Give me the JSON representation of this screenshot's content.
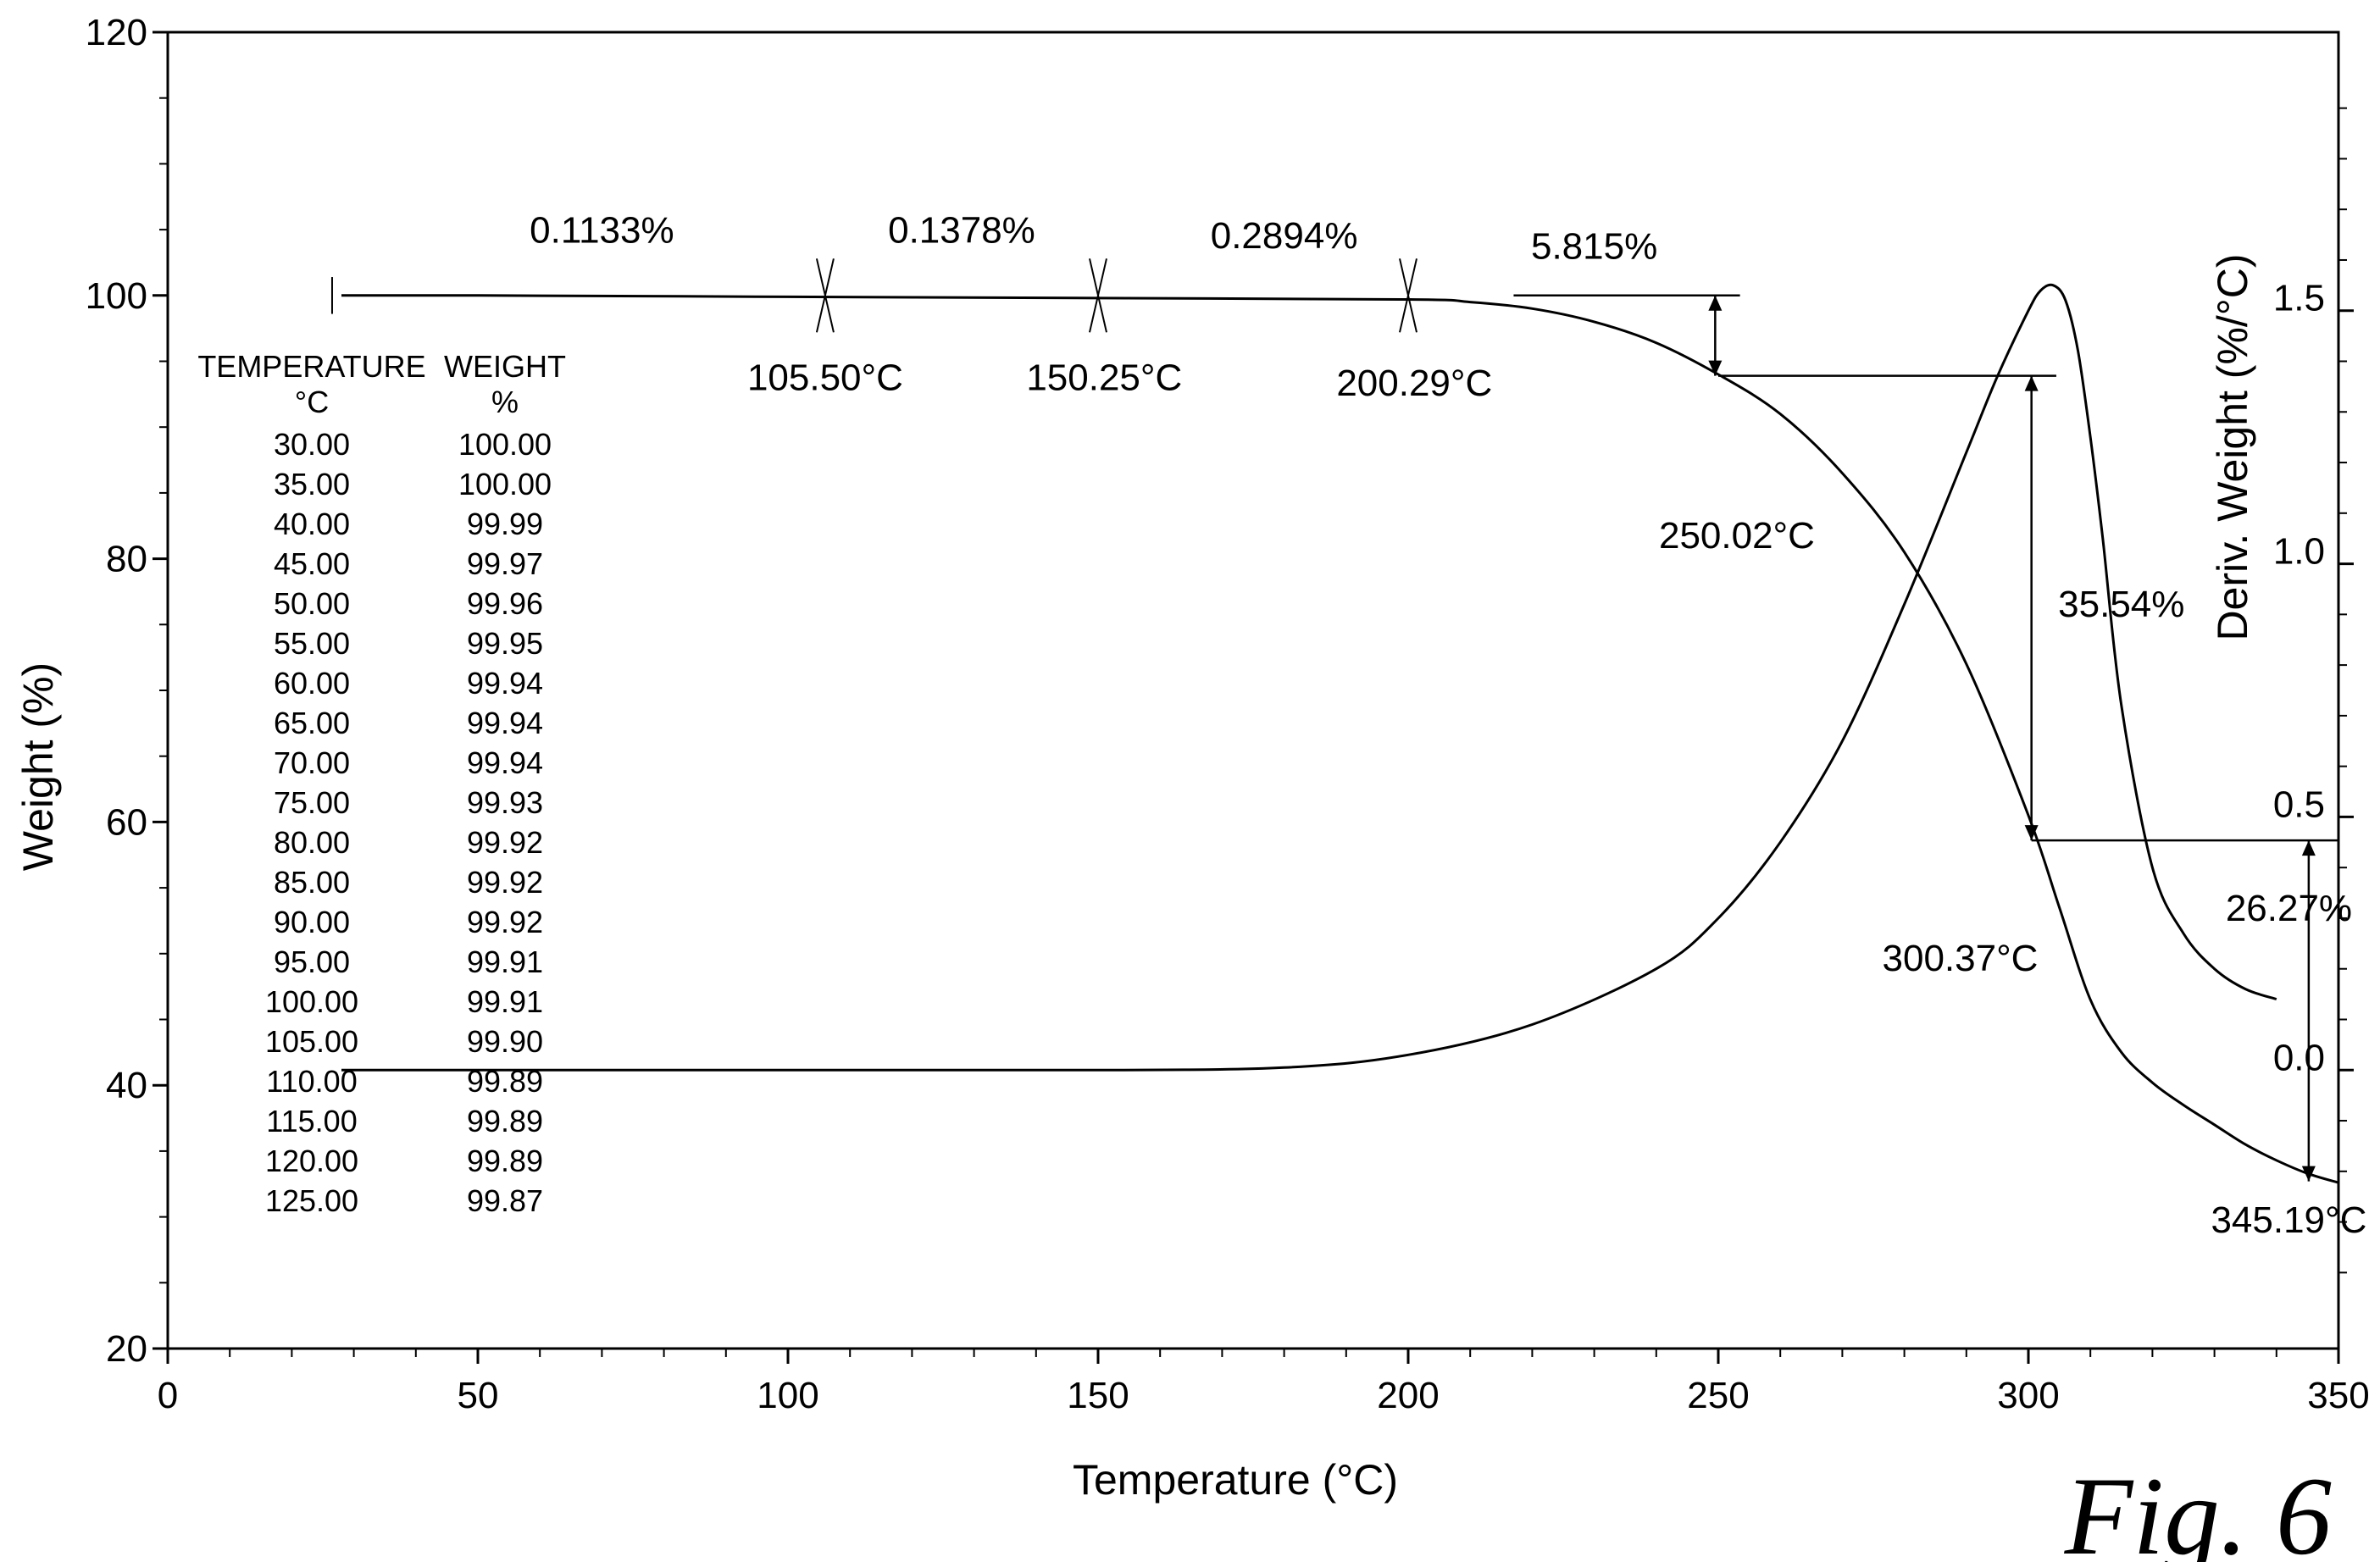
{
  "chart_data": {
    "type": "line",
    "xlabel": "Temperature (°C)",
    "ylabel": "Weight (%)",
    "y2label": "Deriv. Weight (%/°C)",
    "xlim": [
      0,
      350
    ],
    "ylim": [
      20,
      120
    ],
    "y2lim": [
      -0.55,
      2.05
    ],
    "x_ticks": [
      "0",
      "50",
      "100",
      "150",
      "200",
      "250",
      "300",
      "350"
    ],
    "y_ticks": [
      "20",
      "40",
      "60",
      "80",
      "100",
      "120"
    ],
    "y2_ticks": [
      "0.0",
      "0.5",
      "1.0",
      "1.5"
    ],
    "grid": false,
    "series": [
      {
        "axis": "left",
        "x": [
          28,
          50,
          100,
          150,
          200,
          210,
          220,
          230,
          240,
          250,
          260,
          270,
          280,
          290,
          300,
          305,
          310,
          315,
          320,
          325,
          330,
          335,
          340,
          345,
          350
        ],
        "y": [
          100,
          100,
          99.9,
          99.8,
          99.7,
          99.5,
          99.0,
          98.0,
          96.4,
          94.0,
          91.0,
          86.5,
          80.5,
          72.0,
          60.5,
          53.5,
          46.5,
          42.5,
          40.2,
          38.5,
          37.0,
          35.5,
          34.3,
          33.3,
          32.6
        ]
      },
      {
        "axis": "right",
        "x": [
          28,
          100,
          150,
          180,
          200,
          220,
          240,
          250,
          260,
          270,
          280,
          290,
          295,
          300,
          302,
          304,
          306,
          308,
          310,
          312,
          315,
          320,
          325,
          330,
          335,
          340
        ],
        "y": [
          0.0,
          0.0,
          0.0,
          0.005,
          0.03,
          0.09,
          0.2,
          0.3,
          0.45,
          0.65,
          0.92,
          1.22,
          1.37,
          1.5,
          1.54,
          1.55,
          1.52,
          1.42,
          1.25,
          1.05,
          0.72,
          0.4,
          0.27,
          0.2,
          0.16,
          0.14
        ]
      }
    ],
    "table": {
      "headers": [
        "TEMPERATURE",
        "WEIGHT"
      ],
      "units": [
        "°C",
        "%"
      ],
      "rows": [
        [
          "30.00",
          "100.00"
        ],
        [
          "35.00",
          "100.00"
        ],
        [
          "40.00",
          "99.99"
        ],
        [
          "45.00",
          "99.97"
        ],
        [
          "50.00",
          "99.96"
        ],
        [
          "55.00",
          "99.95"
        ],
        [
          "60.00",
          "99.94"
        ],
        [
          "65.00",
          "99.94"
        ],
        [
          "70.00",
          "99.94"
        ],
        [
          "75.00",
          "99.93"
        ],
        [
          "80.00",
          "99.92"
        ],
        [
          "85.00",
          "99.92"
        ],
        [
          "90.00",
          "99.92"
        ],
        [
          "95.00",
          "99.91"
        ],
        [
          "100.00",
          "99.91"
        ],
        [
          "105.00",
          "99.90"
        ],
        [
          "110.00",
          "99.89"
        ],
        [
          "115.00",
          "99.89"
        ],
        [
          "120.00",
          "99.89"
        ],
        [
          "125.00",
          "99.87"
        ]
      ]
    },
    "annotations": [
      {
        "text": "0.1133%",
        "x": 70,
        "y": 104
      },
      {
        "text": "0.1378%",
        "x": 128,
        "y": 104
      },
      {
        "text": "0.2894%",
        "x": 180,
        "y": 103.6
      },
      {
        "text": "5.815%",
        "x": 230,
        "y": 102.8
      },
      {
        "text": "105.50°C",
        "x": 106,
        "y": 92.8
      },
      {
        "text": "150.25°C",
        "x": 151,
        "y": 92.8
      },
      {
        "text": "200.29°C",
        "x": 201,
        "y": 92.4
      },
      {
        "text": "250.02°C",
        "x": 253,
        "y": 80.8
      },
      {
        "text": "35.54%",
        "x": 315,
        "y": 75.6
      },
      {
        "text": "26.27%",
        "x": 342,
        "y": 52.5
      },
      {
        "text": "300.37°C",
        "x": 289,
        "y": 48.7
      },
      {
        "text": "345.19°C",
        "x": 342,
        "y": 28.8
      }
    ],
    "figure_label": "Fig. 6"
  }
}
